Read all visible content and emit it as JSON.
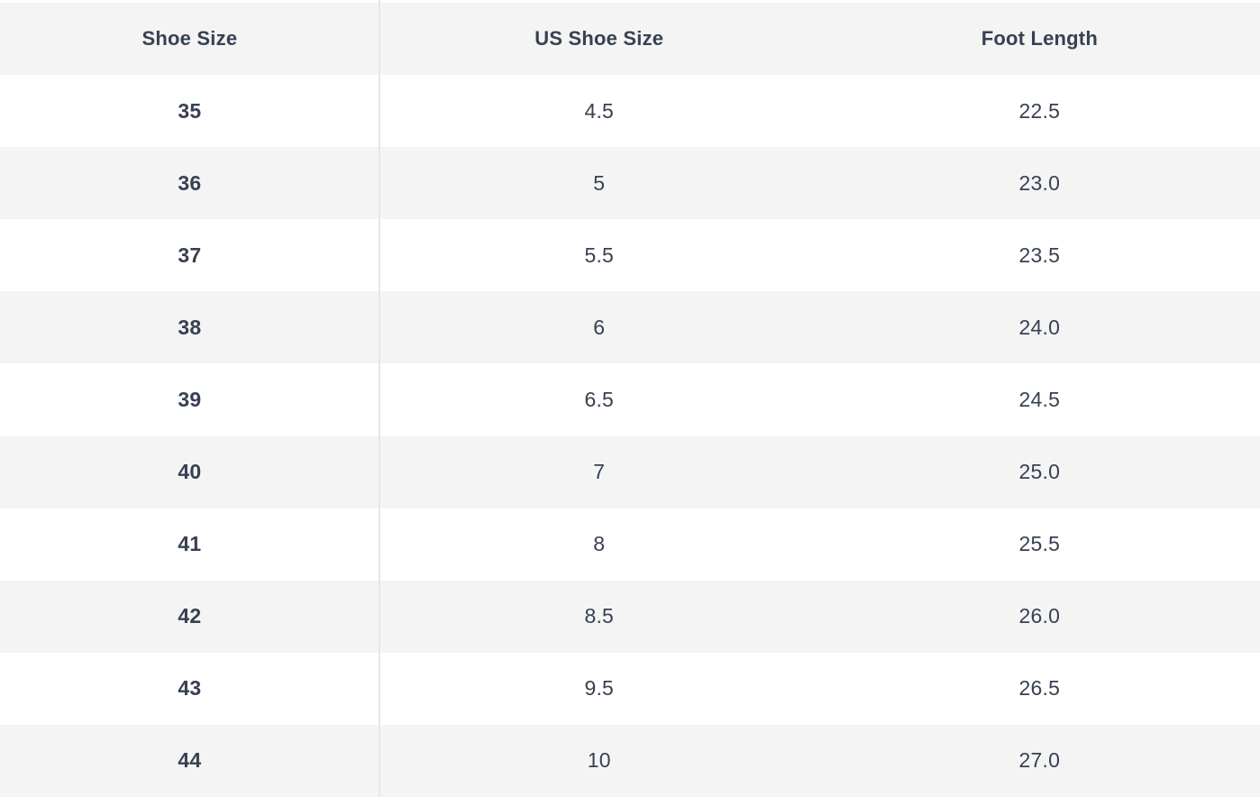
{
  "table": {
    "name": "shoe-size-conversion-chart",
    "headers": [
      "Shoe Size",
      "US Shoe Size",
      "Foot Length"
    ],
    "rows": [
      [
        "35",
        "4.5",
        "22.5"
      ],
      [
        "36",
        "5",
        "23.0"
      ],
      [
        "37",
        "5.5",
        "23.5"
      ],
      [
        "38",
        "6",
        "24.0"
      ],
      [
        "39",
        "6.5",
        "24.5"
      ],
      [
        "40",
        "7",
        "25.0"
      ],
      [
        "41",
        "8",
        "25.5"
      ],
      [
        "42",
        "8.5",
        "26.0"
      ],
      [
        "43",
        "9.5",
        "26.5"
      ],
      [
        "44",
        "10",
        "27.0"
      ]
    ]
  },
  "colors": {
    "stripe_row_bg": "#f4f4f5",
    "row_bg": "#ffffff",
    "column_divider": "#e7e7e9",
    "text": "#374151"
  }
}
